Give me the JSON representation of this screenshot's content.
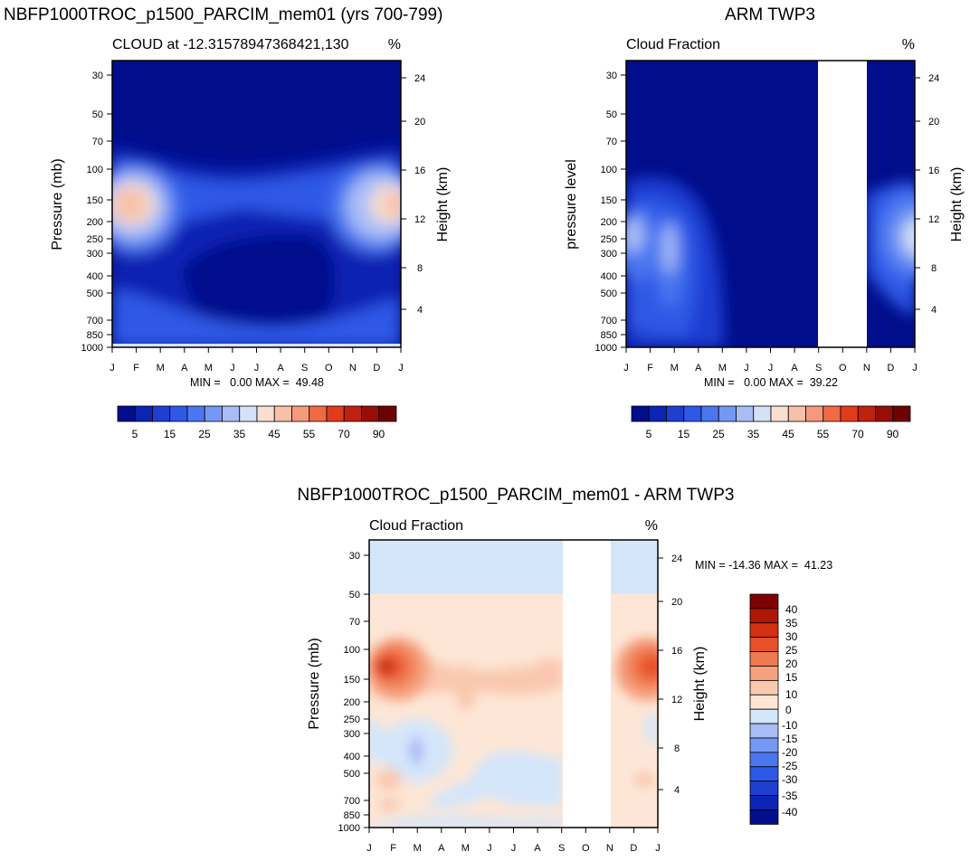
{
  "chart_data": [
    {
      "type": "heatmap",
      "title": "NBFP1000TROC_p1500_PARCIM_mem01 (yrs 700-799)",
      "left_label": "CLOUD at -12.31578947368421,130",
      "right_label": "%",
      "ylabel": "Pressure (mb)",
      "ylabel_right": "Height (km)",
      "x_ticks": [
        "J",
        "F",
        "M",
        "A",
        "M",
        "J",
        "J",
        "A",
        "S",
        "O",
        "N",
        "D",
        "J"
      ],
      "y_ticks": [
        "30",
        "50",
        "70",
        "100",
        "150",
        "200",
        "250",
        "300",
        "400",
        "500",
        "700",
        "850",
        "1000"
      ],
      "y2_ticks": [
        "24",
        "20",
        "16",
        "12",
        "8",
        "4"
      ],
      "stats": "MIN =   0.00 MAX =  49.48",
      "missing_months": [],
      "colorbar": {
        "orientation": "horizontal",
        "labels": [
          "5",
          "15",
          "25",
          "35",
          "45",
          "55",
          "70",
          "90"
        ]
      }
    },
    {
      "type": "heatmap",
      "title": "ARM TWP3",
      "left_label": "Cloud Fraction",
      "right_label": "%",
      "ylabel": "pressure level",
      "ylabel_right": "Height (km)",
      "x_ticks": [
        "J",
        "F",
        "M",
        "A",
        "M",
        "J",
        "J",
        "A",
        "S",
        "O",
        "N",
        "D",
        "J"
      ],
      "y_ticks": [
        "30",
        "50",
        "70",
        "100",
        "150",
        "200",
        "250",
        "300",
        "400",
        "500",
        "700",
        "850",
        "1000"
      ],
      "y2_ticks": [
        "24",
        "20",
        "16",
        "12",
        "8",
        "4"
      ],
      "stats": "MIN =   0.00 MAX =  39.22",
      "missing_months": [
        "S",
        "O"
      ],
      "colorbar": {
        "orientation": "horizontal",
        "labels": [
          "5",
          "15",
          "25",
          "35",
          "45",
          "55",
          "70",
          "90"
        ]
      }
    },
    {
      "type": "heatmap",
      "title": "NBFP1000TROC_p1500_PARCIM_mem01 - ARM TWP3",
      "left_label": "Cloud Fraction",
      "right_label": "%",
      "ylabel": "Pressure (mb)",
      "ylabel_right": "Height (km)",
      "x_ticks": [
        "J",
        "F",
        "M",
        "A",
        "M",
        "J",
        "J",
        "A",
        "S",
        "O",
        "N",
        "D",
        "J"
      ],
      "y_ticks": [
        "30",
        "50",
        "70",
        "100",
        "150",
        "200",
        "250",
        "300",
        "400",
        "500",
        "700",
        "850",
        "1000"
      ],
      "y2_ticks": [
        "24",
        "20",
        "16",
        "12",
        "8",
        "4"
      ],
      "stats": "MIN = -14.36 MAX =  41.23",
      "missing_months": [
        "S",
        "O"
      ],
      "colorbar": {
        "orientation": "vertical",
        "labels": [
          "40",
          "35",
          "30",
          "25",
          "20",
          "15",
          "10",
          "0",
          "-10",
          "-15",
          "-20",
          "-25",
          "-30",
          "-35",
          "-40"
        ]
      }
    }
  ],
  "palettes": {
    "abs": [
      "#000e8c",
      "#0a24b4",
      "#1e3ed2",
      "#2e58e6",
      "#4a76f0",
      "#7698f4",
      "#a8bdf6",
      "#d4e2f8",
      "#f8dfd0",
      "#f7c0a8",
      "#f49a7c",
      "#f06a44",
      "#e23b19",
      "#c02210",
      "#960e06",
      "#6e0202"
    ],
    "diff": [
      "#000e8c",
      "#0a24b4",
      "#1e3ed2",
      "#2e58e6",
      "#4a76f0",
      "#7698f4",
      "#a8bdf6",
      "#d4e6fa",
      "#fde6d6",
      "#f9c8ae",
      "#f5a07e",
      "#f07a50",
      "#e8512a",
      "#d2300f",
      "#b01606",
      "#7e0202"
    ]
  }
}
